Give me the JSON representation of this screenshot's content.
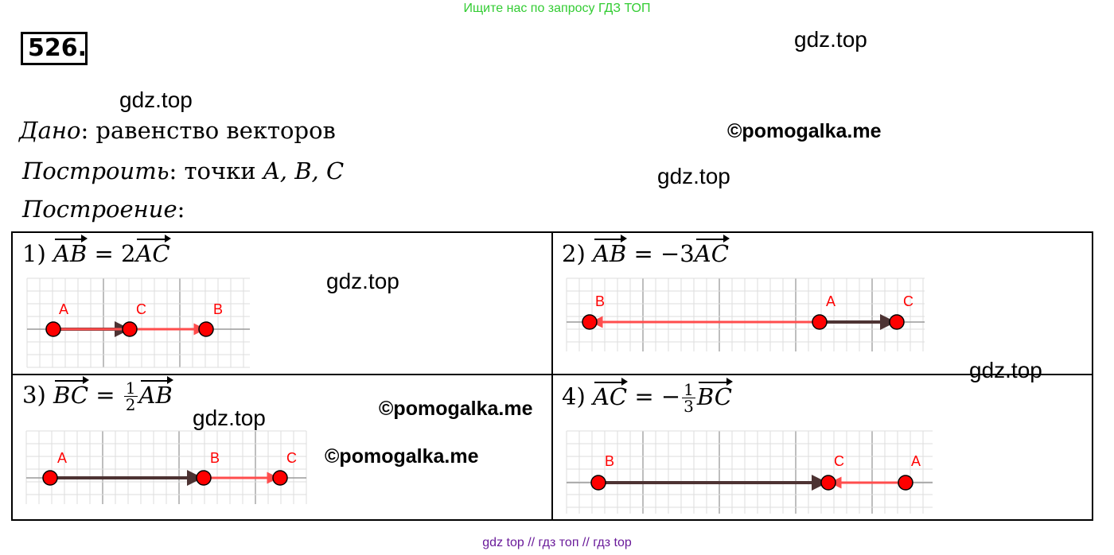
{
  "banner": "Ищите нас по запросу ГДЗ ТОП",
  "problem_number": "526.",
  "watermarks": {
    "gdz": "gdz.top",
    "pomogalka": "©pomogalka.me"
  },
  "given": {
    "label": "Дано",
    "text": ": равенство векторов"
  },
  "construct": {
    "label": "Построить",
    "text": ": точки ",
    "points": "A, B, C"
  },
  "construction": {
    "label": "Построение",
    "text": ":"
  },
  "cells": [
    {
      "num": "1)",
      "lhs": "AB",
      "op": "= 2",
      "rhs": "AC",
      "labels": {
        "A": "A",
        "B": "B",
        "C": "C"
      }
    },
    {
      "num": "2)",
      "lhs": "AB",
      "op": "= −3",
      "rhs": "AC",
      "labels": {
        "A": "A",
        "B": "B",
        "C": "C"
      }
    },
    {
      "num": "3)",
      "lhs": "BC",
      "op": "=",
      "frac_num": "1",
      "frac_den": "2",
      "rhs": "AB",
      "labels": {
        "A": "A",
        "B": "B",
        "C": "C"
      }
    },
    {
      "num": "4)",
      "lhs": "AC",
      "op": "= −",
      "frac_num": "1",
      "frac_den": "3",
      "rhs": "BC",
      "labels": {
        "A": "A",
        "B": "B",
        "C": "C"
      }
    }
  ],
  "colors": {
    "point": "#ff0000",
    "red_vector": "#ff4d4d",
    "dark_vector": "#4d3333",
    "grid": "#dddddd"
  },
  "footer": "gdz top  //  гдз топ  //  гдз top"
}
